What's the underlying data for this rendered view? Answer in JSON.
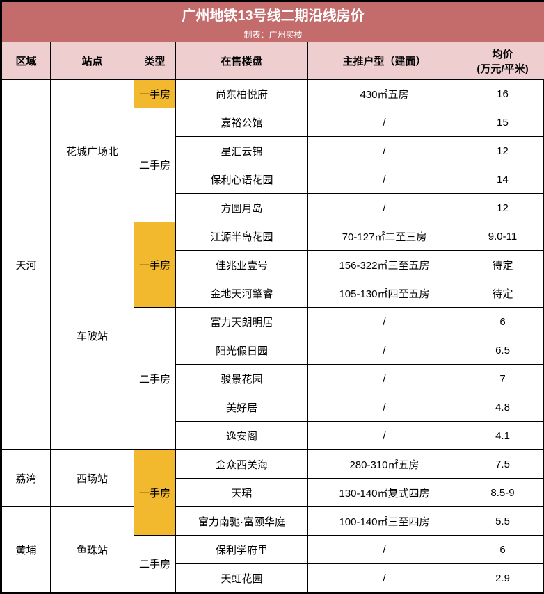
{
  "title": "广州地铁13号线二期沿线房价",
  "subtitle": "制表：广州买楼",
  "colors": {
    "title_bg": "#c46b6c",
    "title_fg": "#ffffff",
    "header_bg": "#eecece",
    "primary_bg": "#f2b82e",
    "border": "#000000",
    "row_bg": "#ffffff"
  },
  "columns": {
    "region": "区域",
    "station": "站点",
    "type": "类型",
    "project": "在售楼盘",
    "unit": "主推户型（建面）",
    "price": "均价\n(万元/平米)"
  },
  "type_labels": {
    "primary": "一手房",
    "secondary": "二手房"
  },
  "regions": [
    {
      "name": "天河",
      "stations": [
        {
          "name": "花城广场北",
          "groups": [
            {
              "type": "primary",
              "rows": [
                {
                  "project": "尚东柏悦府",
                  "unit": "430㎡五房",
                  "price": "16"
                }
              ]
            },
            {
              "type": "secondary",
              "rows": [
                {
                  "project": "嘉裕公馆",
                  "unit": "/",
                  "price": "15"
                },
                {
                  "project": "星汇云锦",
                  "unit": "/",
                  "price": "12"
                },
                {
                  "project": "保利心语花园",
                  "unit": "/",
                  "price": "14"
                },
                {
                  "project": "方圆月岛",
                  "unit": "/",
                  "price": "12"
                }
              ]
            }
          ]
        },
        {
          "name": "车陂站",
          "groups": [
            {
              "type": "primary",
              "rows": [
                {
                  "project": "江源半岛花园",
                  "unit": "70-127㎡二至三房",
                  "price": "9.0-11"
                },
                {
                  "project": "佳兆业壹号",
                  "unit": "156-322㎡三至五房",
                  "price": "待定"
                },
                {
                  "project": "金地天河肇睿",
                  "unit": "105-130㎡四至五房",
                  "price": "待定"
                }
              ]
            },
            {
              "type": "secondary",
              "rows": [
                {
                  "project": "富力天朗明居",
                  "unit": "/",
                  "price": "6"
                },
                {
                  "project": "阳光假日园",
                  "unit": "/",
                  "price": "6.5"
                },
                {
                  "project": "骏景花园",
                  "unit": "/",
                  "price": "7"
                },
                {
                  "project": "美好居",
                  "unit": "/",
                  "price": "4.8"
                },
                {
                  "project": "逸安阁",
                  "unit": "/",
                  "price": "4.1"
                }
              ]
            }
          ]
        }
      ]
    },
    {
      "name": "荔湾",
      "stations": [
        {
          "name": "西场站",
          "groups": [
            {
              "type": "primary",
              "merge_with_next_region": true,
              "rows": [
                {
                  "project": "金众西关海",
                  "unit": "280-310㎡五房",
                  "price": "7.5"
                },
                {
                  "project": "天珺",
                  "unit": "130-140㎡复式四房",
                  "price": "8.5-9"
                }
              ]
            }
          ]
        }
      ]
    },
    {
      "name": "黄埔",
      "stations": [
        {
          "name": "鱼珠站",
          "groups": [
            {
              "type": "primary",
              "merged_from_prev": true,
              "rows": [
                {
                  "project": "富力南驰·富颐华庭",
                  "unit": "100-140㎡三至四房",
                  "price": "5.5"
                }
              ]
            },
            {
              "type": "secondary",
              "rows": [
                {
                  "project": "保利学府里",
                  "unit": "/",
                  "price": "6"
                },
                {
                  "project": "天虹花园",
                  "unit": "/",
                  "price": "2.9"
                }
              ]
            }
          ]
        }
      ]
    }
  ]
}
